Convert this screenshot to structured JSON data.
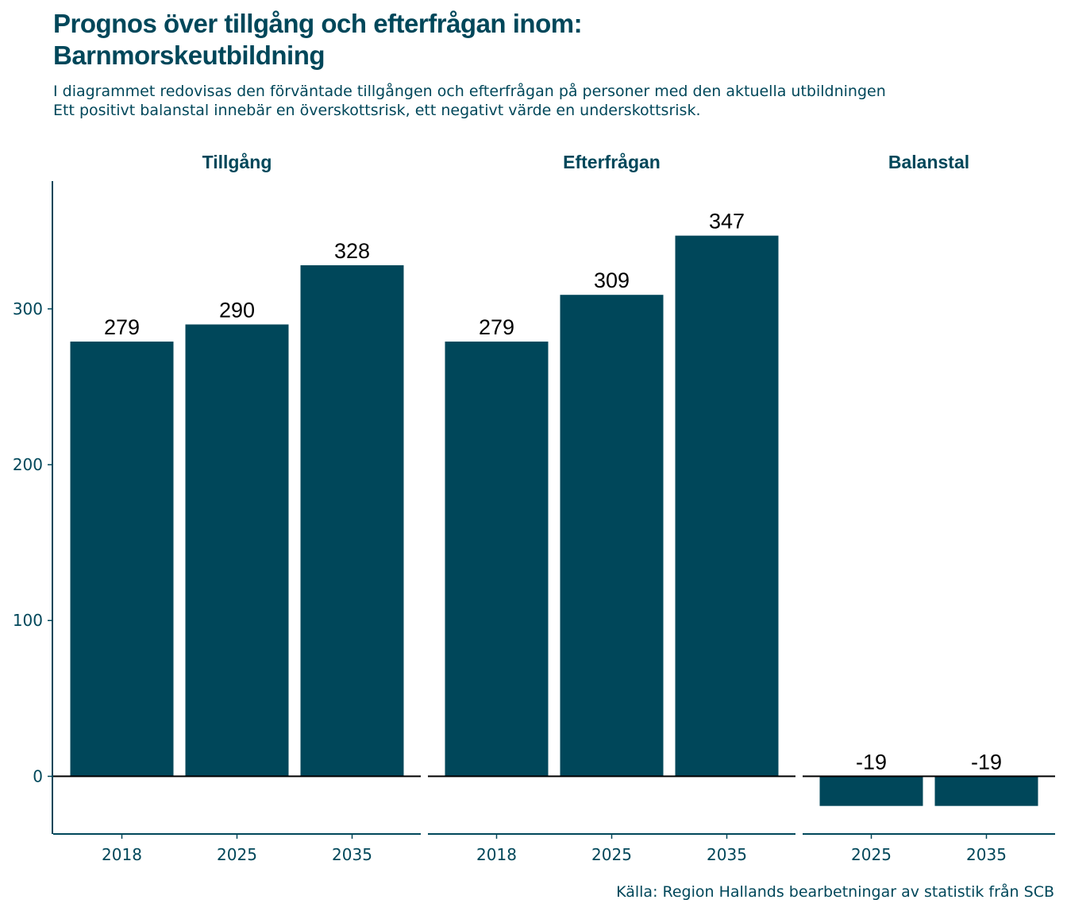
{
  "header": {
    "title_lines": [
      "Prognos över tillgång och efterfrågan inom:",
      "Barnmorskeutbildning"
    ],
    "subtitle_lines": [
      "I diagrammet redovisas den förväntade tillgången och efterfrågan på personer med den aktuella utbildningen",
      "Ett positivt balanstal innebär en överskottsrisk, ett negativt värde en underskottsrisk."
    ]
  },
  "caption": "Källa: Region Hallands bearbetningar av statistik från SCB",
  "colors": {
    "bar": "#00475a",
    "text": "#00475a",
    "zero_line": "#000000"
  },
  "chart_data": {
    "type": "bar",
    "facet": true,
    "ylim": [
      -37,
      382
    ],
    "y_ticks": [
      0,
      100,
      200,
      300
    ],
    "grid": false,
    "legend": "none",
    "panels": [
      {
        "name": "Tillgång",
        "categories": [
          "2018",
          "2025",
          "2035"
        ],
        "values": [
          279,
          290,
          328
        ]
      },
      {
        "name": "Efterfrågan",
        "categories": [
          "2018",
          "2025",
          "2035"
        ],
        "values": [
          279,
          309,
          347
        ]
      },
      {
        "name": "Balanstal",
        "categories": [
          "2025",
          "2035"
        ],
        "values": [
          -19,
          -19
        ]
      }
    ]
  }
}
